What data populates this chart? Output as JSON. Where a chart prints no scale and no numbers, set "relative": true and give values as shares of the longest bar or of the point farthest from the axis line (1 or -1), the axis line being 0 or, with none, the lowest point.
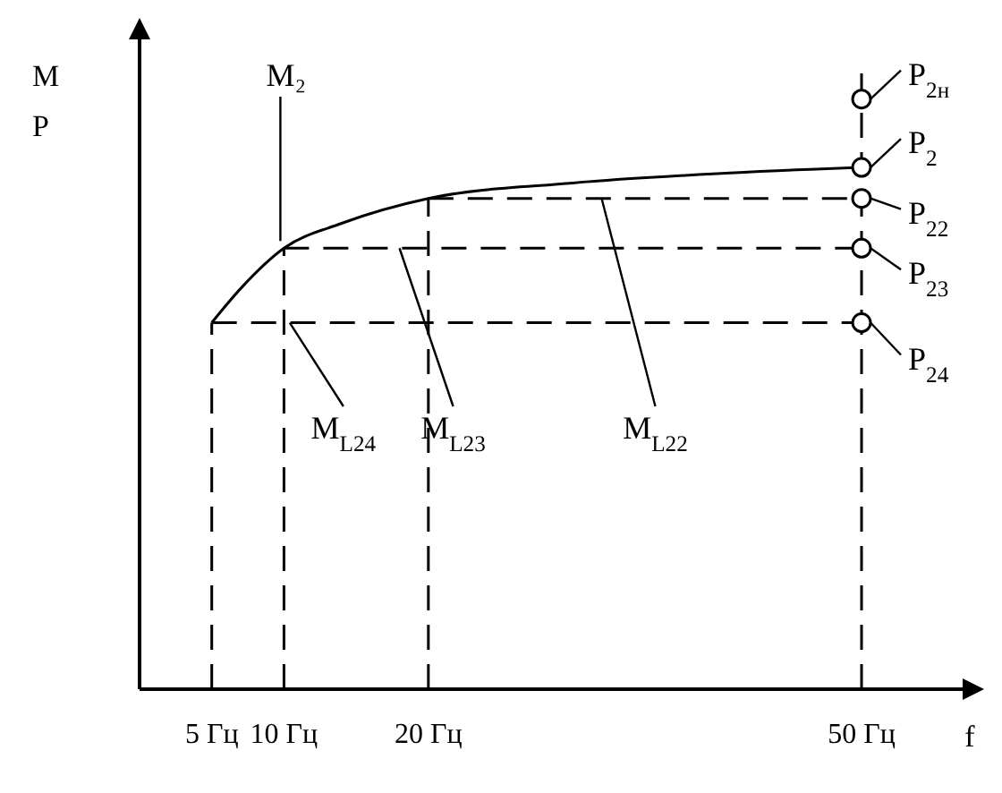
{
  "chart_data": {
    "type": "line",
    "relative": true,
    "xlabel": "f",
    "ylabel": "M P",
    "xlim": [
      0,
      57
    ],
    "xticks": [
      {
        "value": 5,
        "label": "5 Гц"
      },
      {
        "value": 10,
        "label": "10 Гц"
      },
      {
        "value": 20,
        "label": "20 Гц"
      },
      {
        "value": 50,
        "label": "50 Гц"
      }
    ],
    "grid": false,
    "legend": "right",
    "series": [
      {
        "name": "M₂",
        "color": "#000000",
        "line_style": "solid",
        "marker": "none",
        "x": [
          5,
          7,
          10,
          14,
          20,
          30,
          40,
          50
        ],
        "values": [
          0.59,
          0.645,
          0.71,
          0.75,
          0.79,
          0.815,
          0.83,
          0.84
        ]
      },
      {
        "name": "M$_{L24}$",
        "color": "#000000",
        "line_style": "dashed",
        "marker": "none",
        "x": [
          5,
          50
        ],
        "values": [
          0.59,
          0.59
        ]
      },
      {
        "name": "M$_{L23}$",
        "color": "#000000",
        "line_style": "dashed",
        "marker": "none",
        "x": [
          10,
          50
        ],
        "values": [
          0.71,
          0.71
        ]
      },
      {
        "name": "M$_{L22}$",
        "color": "#000000",
        "line_style": "dashed",
        "marker": "none",
        "x": [
          20,
          50
        ],
        "values": [
          0.79,
          0.79
        ]
      },
      {
        "color": "#000000",
        "line_style": "dashed",
        "marker": "none",
        "x": [
          5,
          5
        ],
        "values": [
          0,
          0.59
        ]
      },
      {
        "color": "#000000",
        "line_style": "dashed",
        "marker": "none",
        "x": [
          10,
          10
        ],
        "values": [
          0,
          0.71
        ]
      },
      {
        "color": "#000000",
        "line_style": "dashed",
        "marker": "none",
        "x": [
          20,
          20
        ],
        "values": [
          0,
          0.79
        ]
      },
      {
        "color": "#000000",
        "line_style": "dashed",
        "marker": "none",
        "x": [
          50,
          50
        ],
        "values": [
          0,
          1
        ]
      },
      {
        "type": "scatter",
        "name": "P$_{2н}$",
        "color": "#000000",
        "marker": "circle",
        "x": [
          50
        ],
        "values": [
          0.95
        ]
      },
      {
        "type": "scatter",
        "name": "P$_{2}$",
        "color": "#000000",
        "marker": "circle",
        "x": [
          50
        ],
        "values": [
          0.84
        ]
      },
      {
        "type": "scatter",
        "name": "P$_{22}$",
        "color": "#000000",
        "marker": "circle",
        "x": [
          50
        ],
        "values": [
          0.79
        ]
      },
      {
        "type": "scatter",
        "name": "P$_{23}$",
        "color": "#000000",
        "marker": "circle",
        "x": [
          50
        ],
        "values": [
          0.71
        ]
      },
      {
        "type": "scatter",
        "name": "P$_{24}$",
        "color": "#000000",
        "marker": "circle",
        "x": [
          50
        ],
        "values": [
          0.59
        ]
      }
    ]
  }
}
